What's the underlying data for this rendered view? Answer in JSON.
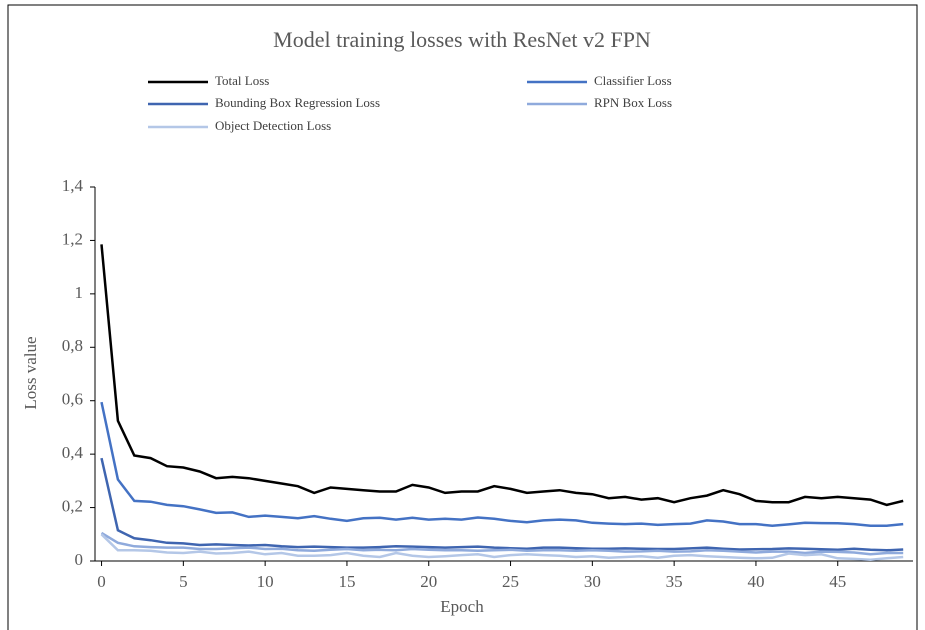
{
  "chart_data": {
    "type": "line",
    "title": "Model training losses with ResNet v2 FPN",
    "x_label": "Epoch",
    "y_label": "Loss value",
    "x": [
      0,
      1,
      2,
      3,
      4,
      5,
      6,
      7,
      8,
      9,
      10,
      11,
      12,
      13,
      14,
      15,
      16,
      17,
      18,
      19,
      20,
      21,
      22,
      23,
      24,
      25,
      26,
      27,
      28,
      29,
      30,
      31,
      32,
      33,
      34,
      35,
      36,
      37,
      38,
      39,
      40,
      41,
      42,
      43,
      44,
      45,
      46,
      47,
      48,
      49
    ],
    "xlim": [
      -0.4,
      49.6
    ],
    "xticks": [
      0,
      5,
      10,
      15,
      20,
      25,
      30,
      35,
      40,
      45
    ],
    "ylim": [
      0,
      1.4
    ],
    "yticks": [
      0,
      {
        "value": 0.2,
        "label": "0,2"
      },
      {
        "value": 0.4,
        "label": "0,4"
      },
      {
        "value": 0.6,
        "label": "0,6"
      },
      {
        "value": 0.8,
        "label": "0,8"
      },
      1,
      {
        "value": 1.2,
        "label": "1,2"
      },
      {
        "value": 1.4,
        "label": "1,4"
      }
    ],
    "grid": false,
    "legend": "top",
    "series": [
      {
        "name": "Total Loss",
        "color": "#000000",
        "values": [
          1.185,
          0.525,
          0.395,
          0.385,
          0.355,
          0.35,
          0.335,
          0.31,
          0.315,
          0.31,
          0.3,
          0.29,
          0.28,
          0.255,
          0.275,
          0.27,
          0.265,
          0.26,
          0.26,
          0.285,
          0.275,
          0.255,
          0.26,
          0.26,
          0.28,
          0.27,
          0.255,
          0.26,
          0.265,
          0.255,
          0.25,
          0.235,
          0.24,
          0.23,
          0.235,
          0.22,
          0.235,
          0.245,
          0.265,
          0.25,
          0.225,
          0.22,
          0.22,
          0.24,
          0.235,
          0.24,
          0.235,
          0.23,
          0.21,
          0.225
        ]
      },
      {
        "name": "Classifier Loss",
        "color": "#4472c4",
        "values": [
          0.595,
          0.305,
          0.225,
          0.222,
          0.21,
          0.205,
          0.193,
          0.18,
          0.182,
          0.165,
          0.17,
          0.165,
          0.16,
          0.168,
          0.158,
          0.15,
          0.16,
          0.162,
          0.155,
          0.162,
          0.155,
          0.158,
          0.155,
          0.163,
          0.158,
          0.15,
          0.145,
          0.152,
          0.155,
          0.152,
          0.143,
          0.14,
          0.138,
          0.14,
          0.135,
          0.138,
          0.14,
          0.152,
          0.148,
          0.138,
          0.138,
          0.132,
          0.137,
          0.143,
          0.142,
          0.141,
          0.138,
          0.132,
          0.132,
          0.138
        ]
      },
      {
        "name": "Bounding Box Regression Loss",
        "color": "#3f65b0",
        "values": [
          0.385,
          0.115,
          0.085,
          0.078,
          0.068,
          0.066,
          0.06,
          0.062,
          0.06,
          0.058,
          0.06,
          0.055,
          0.052,
          0.054,
          0.052,
          0.05,
          0.05,
          0.052,
          0.055,
          0.054,
          0.052,
          0.05,
          0.052,
          0.054,
          0.05,
          0.048,
          0.046,
          0.05,
          0.05,
          0.048,
          0.046,
          0.046,
          0.047,
          0.046,
          0.045,
          0.045,
          0.047,
          0.05,
          0.046,
          0.043,
          0.044,
          0.045,
          0.047,
          0.046,
          0.044,
          0.042,
          0.046,
          0.042,
          0.04,
          0.043
        ]
      },
      {
        "name": "RPN Box Loss",
        "color": "#8faadc",
        "values": [
          0.105,
          0.068,
          0.055,
          0.052,
          0.05,
          0.05,
          0.045,
          0.045,
          0.048,
          0.05,
          0.045,
          0.046,
          0.04,
          0.038,
          0.042,
          0.045,
          0.04,
          0.042,
          0.04,
          0.045,
          0.042,
          0.04,
          0.04,
          0.038,
          0.04,
          0.042,
          0.038,
          0.04,
          0.04,
          0.038,
          0.04,
          0.038,
          0.035,
          0.036,
          0.038,
          0.035,
          0.036,
          0.04,
          0.038,
          0.035,
          0.032,
          0.035,
          0.035,
          0.03,
          0.035,
          0.034,
          0.032,
          0.025,
          0.03,
          0.03
        ]
      },
      {
        "name": "Object Detection Loss",
        "color": "#b4c7e7",
        "values": [
          0.1,
          0.04,
          0.04,
          0.038,
          0.032,
          0.03,
          0.035,
          0.028,
          0.03,
          0.035,
          0.025,
          0.03,
          0.02,
          0.02,
          0.022,
          0.03,
          0.02,
          0.015,
          0.03,
          0.02,
          0.015,
          0.018,
          0.022,
          0.025,
          0.015,
          0.022,
          0.025,
          0.022,
          0.02,
          0.015,
          0.018,
          0.012,
          0.015,
          0.018,
          0.012,
          0.02,
          0.022,
          0.018,
          0.015,
          0.012,
          0.01,
          0.012,
          0.028,
          0.022,
          0.025,
          0.01,
          0.008,
          0.005,
          0.01,
          0.015
        ]
      }
    ]
  }
}
